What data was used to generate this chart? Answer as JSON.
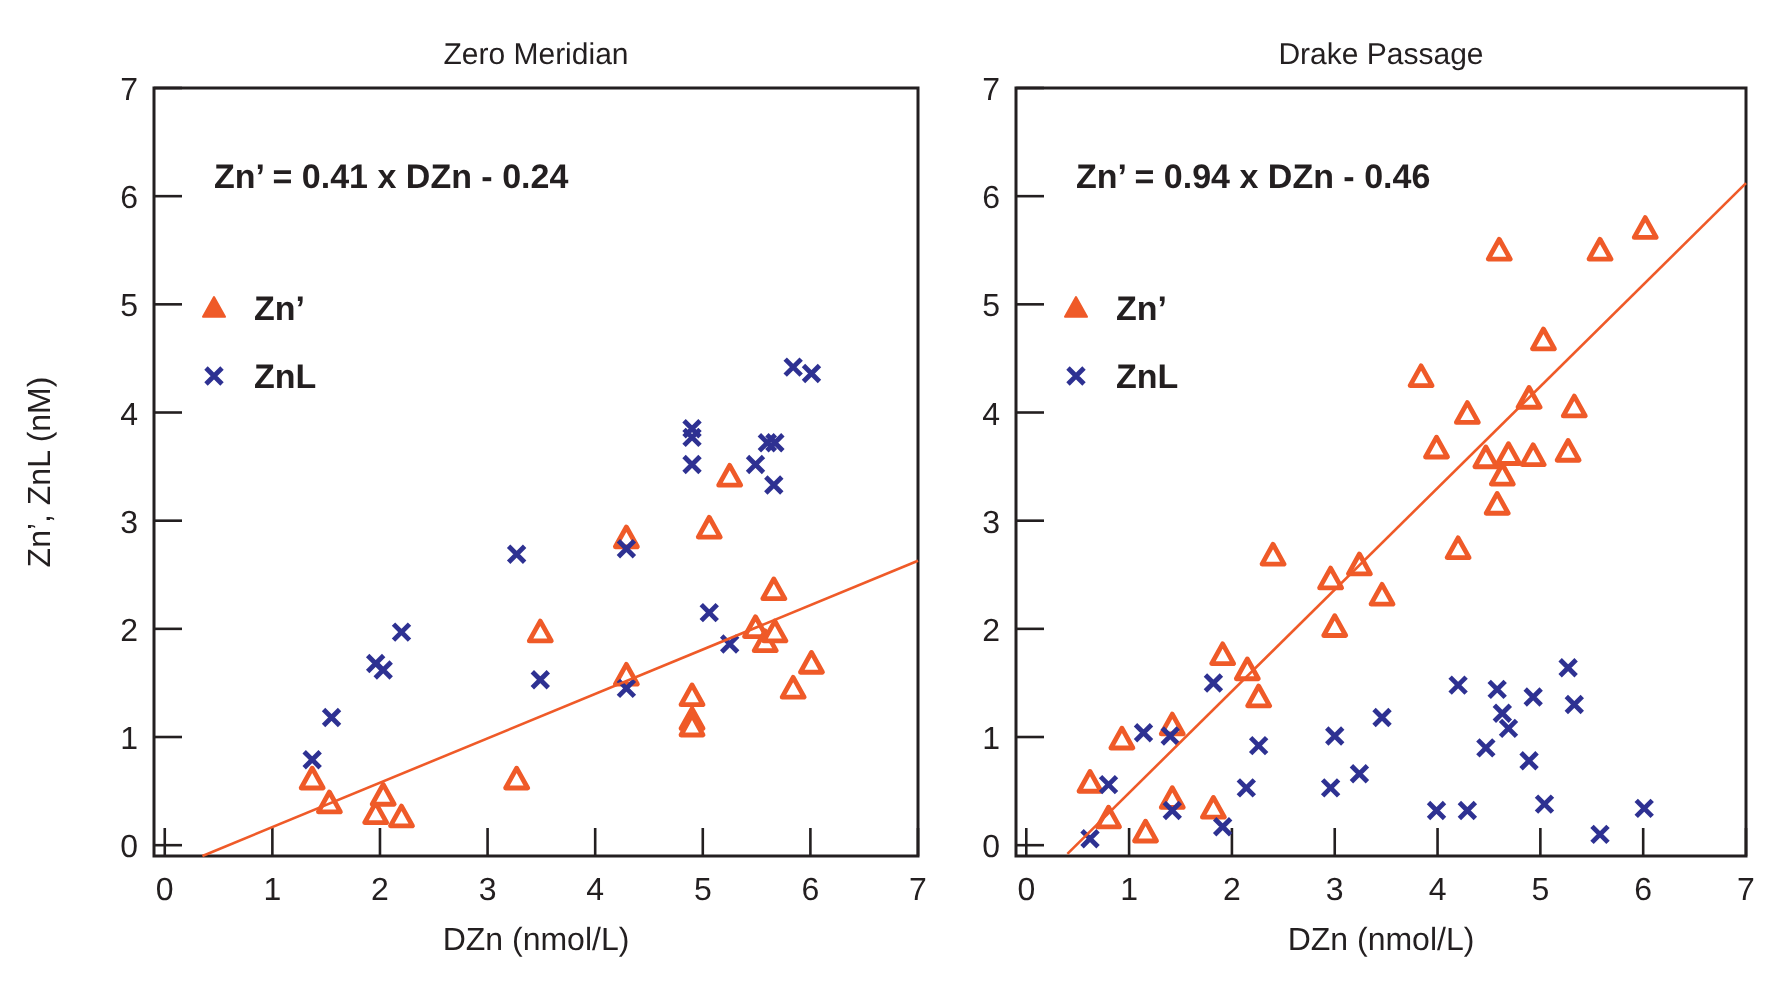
{
  "chart_data": [
    {
      "type": "scatter",
      "title": "Zero Meridian",
      "xlabel": "DZn (nmol/L)",
      "ylabel": "Zn’, ZnL (nM)",
      "xlim": [
        -0.1,
        7
      ],
      "ylim": [
        -0.1,
        7
      ],
      "xticks": [
        0,
        1,
        2,
        3,
        4,
        5,
        6,
        7
      ],
      "yticks": [
        0,
        1,
        2,
        3,
        4,
        5,
        6,
        7
      ],
      "legend": "top left",
      "grid": false,
      "annotations": [
        "Zn’ = 0.41 x DZn - 0.24"
      ],
      "series": [
        {
          "name": "Zn’",
          "color": "#ef5a28",
          "marker": "triangle",
          "x": [
            1.37,
            1.53,
            1.96,
            2.03,
            2.2,
            3.27,
            3.49,
            4.29,
            4.29,
            5.25,
            5.06,
            4.9,
            4.9,
            4.9,
            5.66,
            5.49,
            5.58,
            5.67,
            5.84,
            6.01
          ],
          "values": [
            0.61,
            0.39,
            0.29,
            0.46,
            0.26,
            0.61,
            1.97,
            2.84,
            1.57,
            3.41,
            2.93,
            1.38,
            1.16,
            1.1,
            2.36,
            2.01,
            1.88,
            1.97,
            1.45,
            1.68
          ]
        },
        {
          "name": "ZnL",
          "color": "#2e3192",
          "marker": "cross",
          "x": [
            1.37,
            1.55,
            1.96,
            2.03,
            2.2,
            3.27,
            3.49,
            4.29,
            4.29,
            4.9,
            4.9,
            4.9,
            5.06,
            5.25,
            5.49,
            5.6,
            5.67,
            5.66,
            5.84,
            6.01
          ],
          "values": [
            0.79,
            1.18,
            1.68,
            1.62,
            1.97,
            2.69,
            1.53,
            2.74,
            1.45,
            3.85,
            3.77,
            3.52,
            2.15,
            1.86,
            3.52,
            3.72,
            3.72,
            3.33,
            4.42,
            4.36
          ]
        },
        {
          "type": "line",
          "color": "#ef5a28",
          "marker": "none",
          "x": [
            0.35,
            7
          ],
          "values": [
            -0.1,
            2.63
          ]
        }
      ]
    },
    {
      "type": "scatter",
      "title": "Drake Passage",
      "xlabel": "DZn (nmol/L)",
      "xlim": [
        -0.1,
        7
      ],
      "ylim": [
        -0.1,
        7
      ],
      "xticks": [
        0,
        1,
        2,
        3,
        4,
        5,
        6,
        7
      ],
      "yticks": [
        0,
        1,
        2,
        3,
        4,
        5,
        6,
        7
      ],
      "legend": "top left",
      "grid": false,
      "annotations": [
        "Zn’ = 0.94 x DZn - 0.46"
      ],
      "series": [
        {
          "name": "Zn’",
          "color": "#ef5a28",
          "marker": "triangle",
          "x": [
            0.62,
            0.8,
            0.93,
            1.16,
            1.42,
            1.42,
            1.82,
            1.91,
            2.15,
            2.26,
            2.4,
            2.96,
            3.0,
            3.24,
            3.46,
            3.84,
            3.99,
            4.2,
            4.29,
            4.47,
            4.6,
            4.58,
            4.63,
            4.69,
            4.89,
            4.93,
            5.03,
            5.27,
            5.33,
            5.58,
            6.02
          ],
          "values": [
            0.58,
            0.25,
            0.98,
            0.12,
            1.11,
            0.43,
            0.34,
            1.76,
            1.62,
            1.37,
            2.68,
            2.46,
            2.02,
            2.59,
            2.31,
            4.33,
            3.67,
            2.74,
            3.99,
            3.58,
            5.5,
            3.15,
            3.42,
            3.61,
            4.13,
            3.6,
            4.67,
            3.64,
            4.05,
            5.5,
            5.7
          ]
        },
        {
          "name": "ZnL",
          "color": "#2e3192",
          "marker": "cross",
          "x": [
            0.62,
            0.8,
            1.14,
            1.4,
            1.42,
            1.82,
            1.91,
            2.14,
            2.26,
            2.96,
            3.0,
            3.24,
            3.46,
            3.99,
            4.2,
            4.29,
            4.47,
            4.58,
            4.63,
            4.69,
            4.89,
            4.93,
            5.04,
            5.27,
            5.33,
            5.58,
            6.01
          ],
          "values": [
            0.06,
            0.56,
            1.04,
            1.01,
            0.32,
            1.5,
            0.17,
            0.53,
            0.92,
            0.53,
            1.01,
            0.66,
            1.18,
            0.32,
            1.48,
            0.32,
            0.9,
            1.44,
            1.22,
            1.08,
            0.78,
            1.37,
            0.38,
            1.64,
            1.3,
            0.1,
            0.34
          ]
        },
        {
          "type": "line",
          "color": "#ef5a28",
          "marker": "none",
          "x": [
            0.4,
            7
          ],
          "values": [
            -0.08,
            6.12
          ]
        }
      ]
    }
  ]
}
